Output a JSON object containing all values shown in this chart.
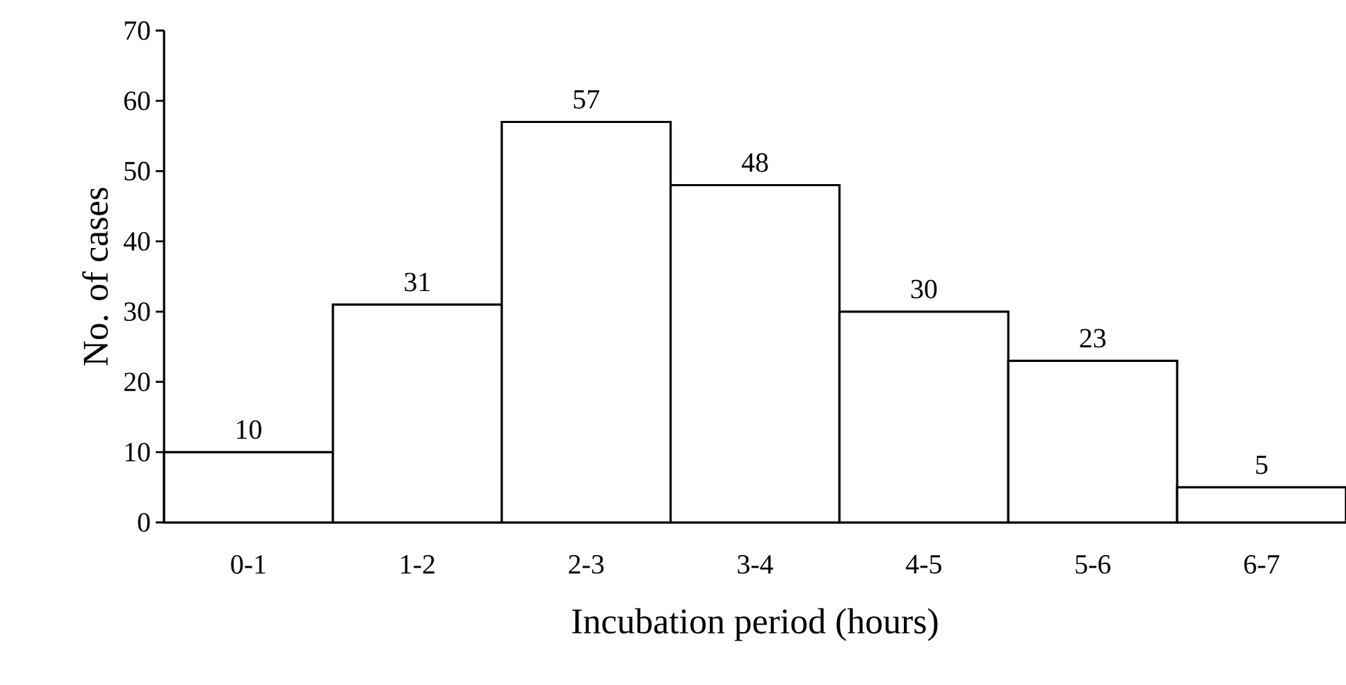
{
  "chart_data": {
    "type": "bar",
    "xlabel": "Incubation period (hours)",
    "ylabel": "No. of cases",
    "categories": [
      "0-1",
      "1-2",
      "2-3",
      "3-4",
      "4-5",
      "5-6",
      "6-7"
    ],
    "values": [
      10,
      31,
      57,
      48,
      30,
      23,
      5
    ],
    "color": "#ffffff",
    "ylim": [
      0,
      70
    ],
    "yticks": [
      0,
      10,
      20,
      30,
      40,
      50,
      60,
      70
    ],
    "data_labels": true
  }
}
